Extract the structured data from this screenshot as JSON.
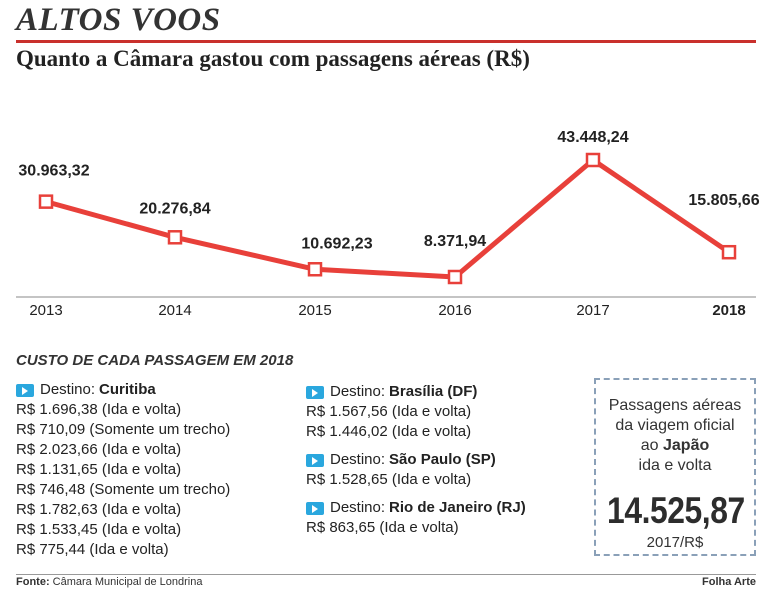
{
  "header": {
    "title": "ALTOS VOOS",
    "subtitle": "Quanto a Câmara gastou com passagens aéreas (R$)"
  },
  "chart_data": {
    "type": "line",
    "title": "Quanto a Câmara gastou com passagens aéreas (R$)",
    "categories": [
      "2013",
      "2014",
      "2015",
      "2016",
      "2017",
      "2018"
    ],
    "values": [
      30963.32,
      20276.84,
      10692.23,
      8371.94,
      43448.24,
      15805.66
    ],
    "value_labels": [
      "30.963,32",
      "20.276,84",
      "10.692,23",
      "8.371,94",
      "43.448,24",
      "15.805,66"
    ],
    "bold_category": "2018",
    "grid": false,
    "series_color": "#e8403a"
  },
  "costs": {
    "heading": "CUSTO DE CADA PASSAGEM EM 2018",
    "column1": [
      {
        "prefix": "Destino:",
        "city": "Curitiba",
        "items": [
          "R$ 1.696,38 (Ida e volta)",
          "R$ 710,09 (Somente um trecho)",
          "R$ 2.023,66 (Ida e volta)",
          "R$ 1.131,65 (Ida e volta)",
          "R$ 746,48 (Somente um trecho)",
          "R$ 1.782,63 (Ida e volta)",
          "R$ 1.533,45 (Ida e volta)",
          "R$ 775,44 (Ida e volta)"
        ]
      }
    ],
    "column2": [
      {
        "prefix": "Destino:",
        "city": "Brasília (DF)",
        "items": [
          "R$ 1.567,56 (Ida e volta)",
          "R$ 1.446,02 (Ida e volta)"
        ]
      },
      {
        "prefix": "Destino:",
        "city": "São Paulo (SP)",
        "items": [
          "R$ 1.528,65 (Ida e volta)"
        ]
      },
      {
        "prefix": "Destino:",
        "city": "Rio de Janeiro (RJ)",
        "items": [
          "R$ 863,65 (Ida e volta)"
        ]
      }
    ]
  },
  "highlight": {
    "line1": "Passagens aéreas",
    "line2": "da viagem oficial",
    "line3_prefix": "ao",
    "line3_bold": "Japão",
    "line4": "ida e volta",
    "value": "14.525,87",
    "unit": "2017/R$"
  },
  "footer": {
    "source_label": "Fonte:",
    "source_text": "Câmara Municipal de Londrina",
    "credit": "Folha Arte"
  },
  "icons": {
    "destination": "arrow-right-icon"
  }
}
